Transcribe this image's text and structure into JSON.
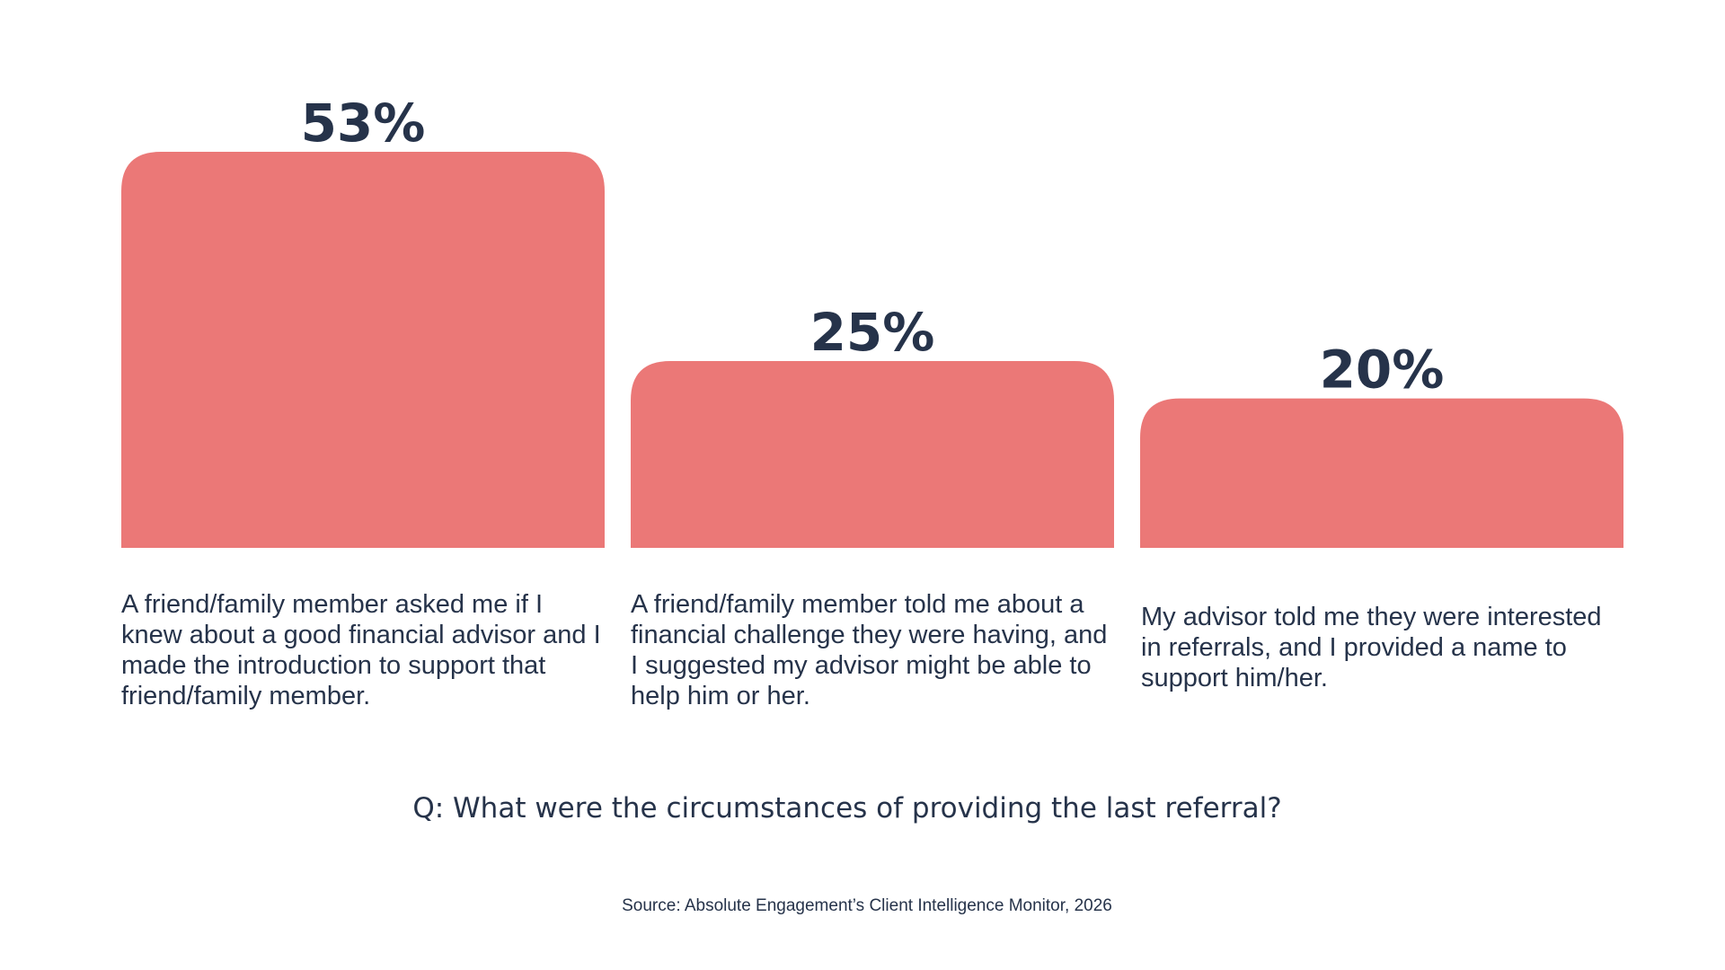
{
  "chart_data": {
    "type": "bar",
    "categories": [
      "A friend/family member asked me if I knew about a good financial advisor and I made the introduction to support that friend/family member.",
      "A friend/family member told me about a financial challenge they were having, and I suggested my advisor might be able to help him or her.",
      "My advisor told me they were interested in referrals, and I provided a name to support him/her."
    ],
    "values": [
      53,
      25,
      20
    ],
    "value_labels": [
      "53%",
      "25%",
      "20%"
    ],
    "unit": "%",
    "ylim": [
      0,
      53
    ],
    "grid": false,
    "title": "",
    "xlabel": "",
    "ylabel": "",
    "bar_color": "#eb7877",
    "text_color": "#26334a"
  },
  "question": "Q: What were the circumstances of providing the last referral?",
  "source": "Source: Absolute Engagement’s Client Intelligence Monitor, 2026"
}
